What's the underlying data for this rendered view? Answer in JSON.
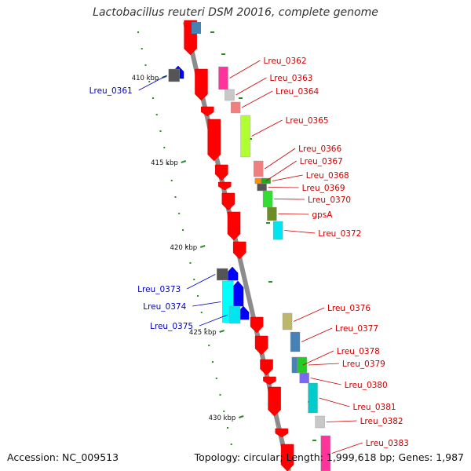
{
  "title": "Lactobacillus reuteri DSM 20016, complete genome",
  "accession_label": "Accession: NC_009513",
  "summary_label": "Topology: circular; Length: 1,999,618 bp; Genes: 1,987",
  "colors": {
    "backbone": "#8c8c8c",
    "forward_label": "#cc0000",
    "reverse_label": "#0000bb",
    "forward_arrow": "#ff0000",
    "reverse_arrow": "#0000ff",
    "tick": "#2e8b2e"
  },
  "ticks": [
    {
      "label": "410 kbp"
    },
    {
      "label": "415 kbp"
    },
    {
      "label": "420 kbp"
    },
    {
      "label": "425 kbp"
    },
    {
      "label": "430 kbp"
    }
  ],
  "genes": [
    {
      "name": "Lreu_0361",
      "strand": "reverse",
      "color": "#555555"
    },
    {
      "name": "Lreu_0362",
      "strand": "forward",
      "color": "#ff3399"
    },
    {
      "name": "Lreu_0363",
      "strand": "forward",
      "color": "#c8c8c8"
    },
    {
      "name": "Lreu_0364",
      "strand": "forward",
      "color": "#f08080"
    },
    {
      "name": "Lreu_0365",
      "strand": "forward",
      "color": "#b0ff30"
    },
    {
      "name": "Lreu_0366",
      "strand": "forward",
      "color": "#f08080"
    },
    {
      "name": "Lreu_0367",
      "strand": "forward",
      "color": "#ff8c00"
    },
    {
      "name": "Lreu_0368",
      "strand": "forward",
      "color": "#22aa22"
    },
    {
      "name": "Lreu_0369",
      "strand": "forward",
      "color": "#555555"
    },
    {
      "name": "Lreu_0370",
      "strand": "forward",
      "color": "#33dd33"
    },
    {
      "name": "gpsA",
      "strand": "forward",
      "color": "#6b8e23"
    },
    {
      "name": "Lreu_0372",
      "strand": "forward",
      "color": "#00e5ee"
    },
    {
      "name": "Lreu_0373",
      "strand": "reverse",
      "color": "#555555"
    },
    {
      "name": "Lreu_0374",
      "strand": "reverse",
      "color": "#00ffff"
    },
    {
      "name": "Lreu_0375",
      "strand": "reverse",
      "color": "#00e5ee"
    },
    {
      "name": "Lreu_0376",
      "strand": "forward",
      "color": "#bdb76b"
    },
    {
      "name": "Lreu_0377",
      "strand": "forward",
      "color": "#4682b4"
    },
    {
      "name": "Lreu_0378",
      "strand": "forward",
      "color": "#4682b4"
    },
    {
      "name": "Lreu_0379",
      "strand": "forward",
      "color": "#22cc22"
    },
    {
      "name": "Lreu_0380",
      "strand": "forward",
      "color": "#7b68ee"
    },
    {
      "name": "Lreu_0381",
      "strand": "forward",
      "color": "#00cccc"
    },
    {
      "name": "Lreu_0382",
      "strand": "forward",
      "color": "#c8c8c8"
    },
    {
      "name": "Lreu_0383",
      "strand": "forward",
      "color": "#ff3399"
    }
  ]
}
